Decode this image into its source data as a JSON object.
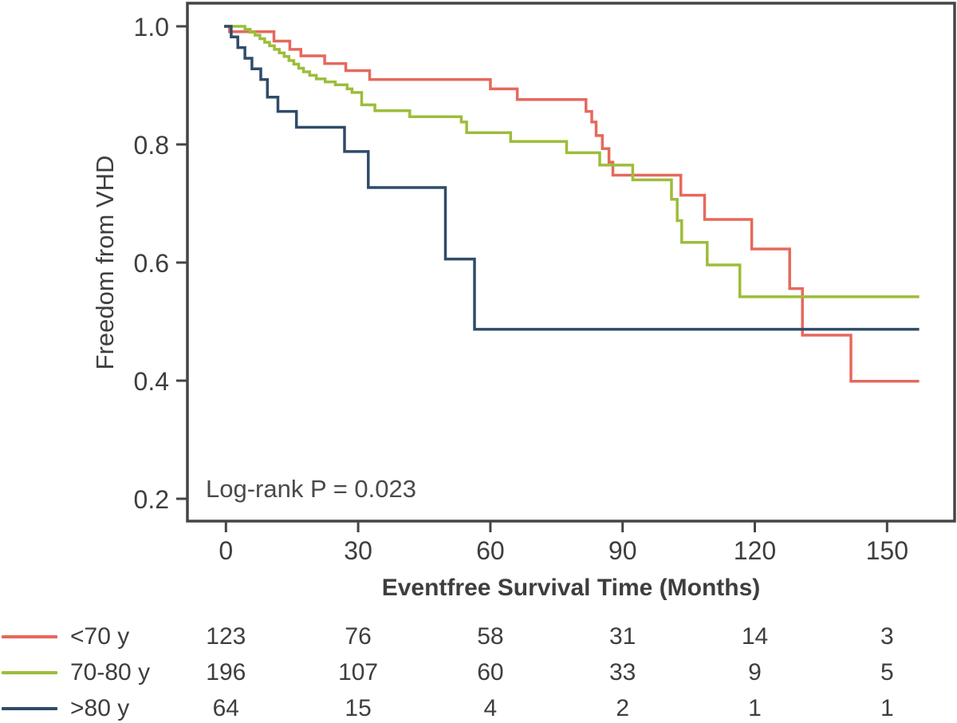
{
  "chart_data": {
    "type": "line",
    "subtype": "kaplan-meier-step-curves",
    "title": "",
    "xlabel": "Eventfree Survival Time (Months)",
    "ylabel": "Freedom from VHD",
    "annotation": "Log-rank P = 0.023",
    "grid": false,
    "legend_position": "bottom-left",
    "xlim": [
      -8.7,
      165.3
    ],
    "ylim": [
      0.162,
      1.039
    ],
    "x_ticks": [
      "0",
      "30",
      "60",
      "90",
      "120",
      "150"
    ],
    "x_tick_values": [
      0,
      30,
      60,
      90,
      120,
      150
    ],
    "y_ticks": [
      "1.0",
      "0.8",
      "0.6",
      "0.4",
      "0.2"
    ],
    "y_tick_values": [
      1.0,
      0.8,
      0.6,
      0.4,
      0.2
    ],
    "curve_end_month": 157.3,
    "axis_color": "#454545",
    "series": [
      {
        "id": "under-70",
        "name": "<70 y",
        "color": "#e5695c",
        "at_risk": [
          123,
          76,
          58,
          31,
          14,
          3
        ],
        "steps": [
          [
            0,
            1.0
          ],
          [
            0.8,
            0.991
          ],
          [
            10.9,
            0.975
          ],
          [
            14.5,
            0.961
          ],
          [
            17.0,
            0.95
          ],
          [
            22.4,
            0.937
          ],
          [
            27.2,
            0.925
          ],
          [
            32.6,
            0.91
          ],
          [
            60.0,
            0.894
          ],
          [
            66.1,
            0.876
          ],
          [
            81.7,
            0.856
          ],
          [
            83.0,
            0.838
          ],
          [
            84.0,
            0.815
          ],
          [
            85.4,
            0.793
          ],
          [
            86.9,
            0.77
          ],
          [
            87.8,
            0.748
          ],
          [
            103.2,
            0.714
          ],
          [
            108.6,
            0.673
          ],
          [
            119.3,
            0.623
          ],
          [
            127.9,
            0.556
          ],
          [
            130.8,
            0.477
          ],
          [
            141.8,
            0.399
          ]
        ]
      },
      {
        "id": "70-80",
        "name": "70-80 y",
        "color": "#9cbd3b",
        "at_risk": [
          196,
          107,
          60,
          33,
          9,
          5
        ],
        "steps": [
          [
            0,
            1.0
          ],
          [
            4.3,
            0.995
          ],
          [
            5.5,
            0.99
          ],
          [
            6.6,
            0.985
          ],
          [
            7.7,
            0.979
          ],
          [
            8.8,
            0.973
          ],
          [
            9.9,
            0.967
          ],
          [
            11.0,
            0.961
          ],
          [
            12.1,
            0.955
          ],
          [
            13.2,
            0.949
          ],
          [
            14.3,
            0.942
          ],
          [
            15.4,
            0.936
          ],
          [
            16.5,
            0.929
          ],
          [
            17.6,
            0.923
          ],
          [
            19.0,
            0.917
          ],
          [
            20.5,
            0.911
          ],
          [
            22.5,
            0.906
          ],
          [
            24.8,
            0.901
          ],
          [
            27.5,
            0.894
          ],
          [
            28.6,
            0.888
          ],
          [
            30.8,
            0.867
          ],
          [
            33.8,
            0.857
          ],
          [
            41.7,
            0.847
          ],
          [
            53.4,
            0.838
          ],
          [
            54.6,
            0.82
          ],
          [
            64.6,
            0.805
          ],
          [
            77.3,
            0.786
          ],
          [
            84.8,
            0.765
          ],
          [
            92.3,
            0.74
          ],
          [
            101.1,
            0.707
          ],
          [
            102.4,
            0.671
          ],
          [
            103.4,
            0.634
          ],
          [
            109.2,
            0.596
          ],
          [
            116.6,
            0.542
          ]
        ]
      },
      {
        "id": "over-80",
        "name": ">80 y",
        "color": "#2f4c69",
        "at_risk": [
          64,
          15,
          4,
          2,
          1,
          1
        ],
        "steps": [
          [
            0,
            1.0
          ],
          [
            1.2,
            0.982
          ],
          [
            2.7,
            0.964
          ],
          [
            4.3,
            0.946
          ],
          [
            5.9,
            0.928
          ],
          [
            7.9,
            0.91
          ],
          [
            9.4,
            0.88
          ],
          [
            11.8,
            0.856
          ],
          [
            16.0,
            0.829
          ],
          [
            26.9,
            0.788
          ],
          [
            32.3,
            0.727
          ],
          [
            49.8,
            0.606
          ],
          [
            56.4,
            0.487
          ]
        ]
      }
    ]
  },
  "risk_table": {
    "time_points": [
      0,
      30,
      60,
      90,
      120,
      150
    ],
    "rows": [
      {
        "label": "<70 y",
        "counts": [
          123,
          76,
          58,
          31,
          14,
          3
        ]
      },
      {
        "label": "70-80 y",
        "counts": [
          196,
          107,
          60,
          33,
          9,
          5
        ]
      },
      {
        "label": ">80 y",
        "counts": [
          64,
          15,
          4,
          2,
          1,
          1
        ]
      }
    ]
  }
}
